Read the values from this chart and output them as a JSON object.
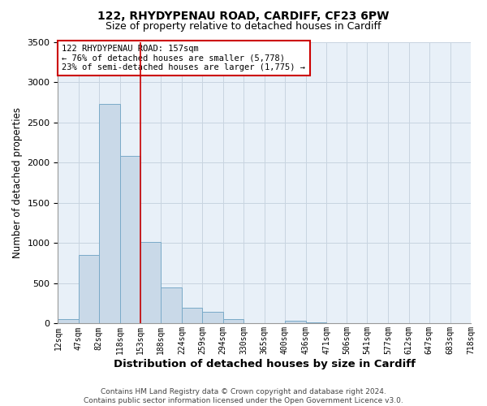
{
  "title": "122, RHYDYPENAU ROAD, CARDIFF, CF23 6PW",
  "subtitle": "Size of property relative to detached houses in Cardiff",
  "xlabel": "Distribution of detached houses by size in Cardiff",
  "ylabel": "Number of detached properties",
  "bin_edges": [
    12,
    47,
    82,
    118,
    153,
    188,
    224,
    259,
    294,
    330,
    365,
    400,
    436,
    471,
    506,
    541,
    577,
    612,
    647,
    683,
    718
  ],
  "bin_counts": [
    55,
    850,
    2730,
    2080,
    1010,
    450,
    200,
    145,
    55,
    0,
    0,
    30,
    10,
    0,
    0,
    0,
    0,
    0,
    0,
    0
  ],
  "bar_facecolor": "#c9d9e8",
  "bar_edgecolor": "#7aaac8",
  "vline_x": 153,
  "vline_color": "#cc0000",
  "annotation_text": "122 RHYDYPENAU ROAD: 157sqm\n← 76% of detached houses are smaller (5,778)\n23% of semi-detached houses are larger (1,775) →",
  "annotation_box_edgecolor": "#cc0000",
  "annotation_box_facecolor": "white",
  "ylim": [
    0,
    3500
  ],
  "tick_labels": [
    "12sqm",
    "47sqm",
    "82sqm",
    "118sqm",
    "153sqm",
    "188sqm",
    "224sqm",
    "259sqm",
    "294sqm",
    "330sqm",
    "365sqm",
    "400sqm",
    "436sqm",
    "471sqm",
    "506sqm",
    "541sqm",
    "577sqm",
    "612sqm",
    "647sqm",
    "683sqm",
    "718sqm"
  ],
  "grid_color": "#c8d4e0",
  "background_color": "#e8f0f8",
  "footnote": "Contains HM Land Registry data © Crown copyright and database right 2024.\nContains public sector information licensed under the Open Government Licence v3.0.",
  "title_fontsize": 10,
  "subtitle_fontsize": 9,
  "xlabel_fontsize": 9.5,
  "ylabel_fontsize": 8.5,
  "tick_fontsize": 7,
  "annotation_fontsize": 7.5,
  "footnote_fontsize": 6.5,
  "ytick_fontsize": 8
}
